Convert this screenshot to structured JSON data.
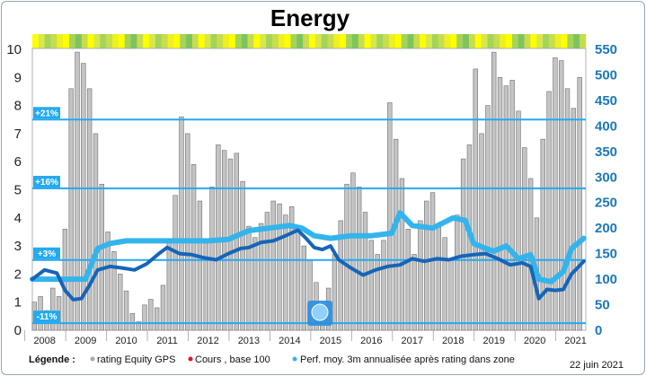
{
  "chart_data": {
    "type": "bar",
    "title": "Energy",
    "y_left": {
      "ticks": [
        "0",
        "1",
        "2",
        "3",
        "4",
        "5",
        "6",
        "7",
        "8",
        "9",
        "10"
      ],
      "ylim": [
        0,
        10
      ]
    },
    "y_right": {
      "ticks": [
        "0",
        "50",
        "100",
        "150",
        "200",
        "250",
        "300",
        "350",
        "400",
        "450",
        "500",
        "550"
      ],
      "ylim": [
        0,
        550
      ]
    },
    "x_ticks": [
      "2008",
      "2009",
      "2010",
      "2011",
      "2012",
      "2013",
      "2014",
      "2015",
      "2016",
      "2017",
      "2018",
      "2019",
      "2020",
      "2021"
    ],
    "x_range": [
      2007.7,
      2021.25
    ],
    "bands": [
      {
        "label": "+21%",
        "level": 7.5
      },
      {
        "label": "+16%",
        "level": 5.05
      },
      {
        "label": "+3%",
        "level": 2.5
      },
      {
        "label": "-11%",
        "level": 0.25
      }
    ],
    "series": [
      {
        "name": "rating Equity GPS",
        "kind": "bar",
        "color": "#b8b8b8",
        "x": [
          2007.75,
          2007.9,
          2008.05,
          2008.2,
          2008.35,
          2008.5,
          2008.65,
          2008.8,
          2008.95,
          2009.1,
          2009.25,
          2009.4,
          2009.55,
          2009.7,
          2009.85,
          2010.0,
          2010.15,
          2010.3,
          2010.45,
          2010.6,
          2010.75,
          2010.9,
          2011.05,
          2011.2,
          2011.35,
          2011.5,
          2011.65,
          2011.8,
          2011.95,
          2012.1,
          2012.25,
          2012.4,
          2012.55,
          2012.7,
          2012.85,
          2013.0,
          2013.15,
          2013.3,
          2013.45,
          2013.6,
          2013.75,
          2013.9,
          2014.05,
          2014.2,
          2014.35,
          2014.5,
          2014.65,
          2014.8,
          2014.95,
          2015.1,
          2015.25,
          2015.4,
          2015.55,
          2015.7,
          2015.85,
          2016.0,
          2016.15,
          2016.3,
          2016.45,
          2016.6,
          2016.75,
          2016.9,
          2017.05,
          2017.2,
          2017.35,
          2017.5,
          2017.65,
          2017.8,
          2017.95,
          2018.1,
          2018.25,
          2018.4,
          2018.55,
          2018.7,
          2018.85,
          2019.0,
          2019.15,
          2019.3,
          2019.45,
          2019.6,
          2019.75,
          2019.9,
          2020.05,
          2020.2,
          2020.35,
          2020.5,
          2020.65,
          2020.8,
          2020.95,
          2021.1
        ],
        "values": [
          1.0,
          1.2,
          0.7,
          1.5,
          1.2,
          3.6,
          8.6,
          9.9,
          9.5,
          8.6,
          7.0,
          5.2,
          3.5,
          2.8,
          2.0,
          1.4,
          0.6,
          0.3,
          0.9,
          1.1,
          0.8,
          1.6,
          3.2,
          4.8,
          7.6,
          7.0,
          5.9,
          4.6,
          3.1,
          5.1,
          6.6,
          6.4,
          6.1,
          6.3,
          5.3,
          3.7,
          3.3,
          3.8,
          4.2,
          4.6,
          4.5,
          4.1,
          4.4,
          3.6,
          3.0,
          2.5,
          1.7,
          0.7,
          1.5,
          2.7,
          3.9,
          5.2,
          5.6,
          5.1,
          4.2,
          3.2,
          2.7,
          3.2,
          8.1,
          6.8,
          5.4,
          3.6,
          2.7,
          3.9,
          4.6,
          4.9,
          3.7,
          3.3,
          2.5,
          4.1,
          6.1,
          6.6,
          9.3,
          7.0,
          8.0,
          9.9,
          9.0,
          8.7,
          8.9,
          7.8,
          6.5,
          5.4,
          4.0,
          6.8,
          8.5,
          9.7,
          9.6,
          8.6,
          7.9,
          9.0
        ]
      },
      {
        "name": "Cours , base 100",
        "kind": "line",
        "color": "#1565b8",
        "x": [
          2007.7,
          2008.0,
          2008.3,
          2008.5,
          2008.7,
          2008.9,
          2009.1,
          2009.3,
          2009.6,
          2009.9,
          2010.2,
          2010.5,
          2010.8,
          2011.0,
          2011.3,
          2011.6,
          2011.9,
          2012.2,
          2012.5,
          2012.8,
          2013.0,
          2013.3,
          2013.6,
          2013.9,
          2014.2,
          2014.4,
          2014.6,
          2014.8,
          2015.0,
          2015.2,
          2015.5,
          2015.8,
          2016.1,
          2016.4,
          2016.7,
          2017.0,
          2017.3,
          2017.6,
          2017.9,
          2018.2,
          2018.5,
          2018.8,
          2019.1,
          2019.4,
          2019.7,
          2019.9,
          2020.1,
          2020.3,
          2020.5,
          2020.7,
          2020.9,
          2021.2
        ],
        "values": [
          100,
          118,
          112,
          78,
          60,
          62,
          88,
          118,
          125,
          122,
          118,
          130,
          150,
          162,
          150,
          148,
          142,
          138,
          150,
          160,
          162,
          172,
          175,
          185,
          196,
          180,
          162,
          158,
          165,
          138,
          122,
          108,
          118,
          125,
          128,
          140,
          135,
          140,
          138,
          145,
          148,
          150,
          140,
          128,
          132,
          125,
          62,
          80,
          78,
          80,
          110,
          135
        ]
      },
      {
        "name": "Perf. moy. 3m annualisée après rating dans zone",
        "kind": "line",
        "color": "#33b4ec",
        "x": [
          2007.7,
          2008.5,
          2009.0,
          2009.3,
          2009.6,
          2010.0,
          2010.5,
          2011.0,
          2011.5,
          2012.0,
          2012.5,
          2013.0,
          2013.5,
          2014.0,
          2014.3,
          2014.6,
          2015.0,
          2015.5,
          2016.0,
          2016.5,
          2016.7,
          2017.0,
          2017.5,
          2018.0,
          2018.3,
          2018.5,
          2018.8,
          2019.0,
          2019.3,
          2019.6,
          2019.9,
          2020.1,
          2020.4,
          2020.7,
          2020.9,
          2021.2
        ],
        "values": [
          100,
          100,
          100,
          160,
          170,
          175,
          175,
          175,
          175,
          175,
          178,
          195,
          200,
          205,
          200,
          185,
          180,
          185,
          185,
          190,
          230,
          205,
          200,
          220,
          215,
          170,
          160,
          155,
          165,
          140,
          148,
          100,
          95,
          115,
          160,
          180
        ]
      }
    ],
    "legend": {
      "title": "Légende :",
      "items": [
        {
          "label": "rating Equity GPS",
          "color": "#aaaaaa"
        },
        {
          "label": "Cours , base 100",
          "color": "#e8141c"
        },
        {
          "label": "Perf. moy. 3m annualisée après rating dans zone",
          "color": "#33b4ec"
        }
      ]
    },
    "date": "22 juin 2021",
    "rating_strip_colors": [
      "#ffff00",
      "#d8e84a",
      "#a4d45a",
      "#7ec45c",
      "#c8dc50",
      "#f0f020"
    ]
  }
}
